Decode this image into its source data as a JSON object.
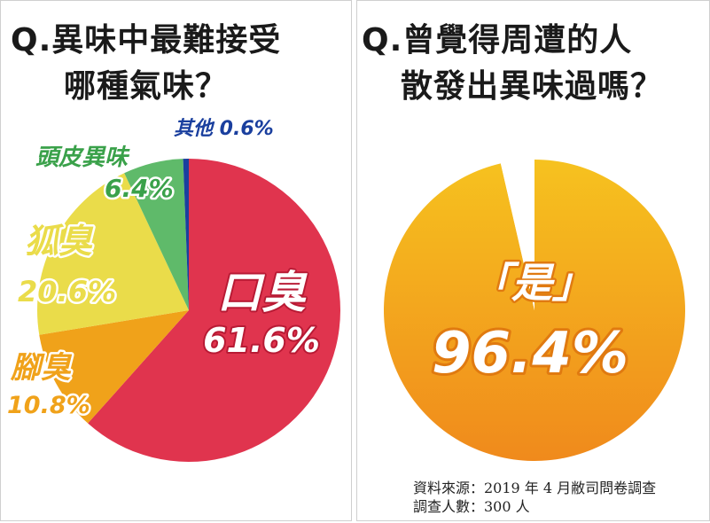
{
  "left_question": {
    "prefix": "Q.",
    "line1": "異味中最難接受",
    "line2": "哪種氣味？"
  },
  "right_question": {
    "prefix": "Q.",
    "line1": "曾覺得周遭的人",
    "line2": "散發出異味過嗎？"
  },
  "source": {
    "line1": "資料來源：2019 年 4 月敝司問卷調查",
    "line2": "調查人數：300 人"
  },
  "colors": {
    "mouth": "#e0344e",
    "foot": "#f0a21a",
    "armpit": "#eadc4a",
    "scalp": "#5fba6a",
    "other": "#1a3f9e",
    "yes_top": "#f6c21f",
    "yes_bottom": "#f08a1c"
  },
  "chart_data": [
    {
      "type": "pie",
      "title": "異味中最難接受哪種氣味？",
      "slices": [
        {
          "label": "口臭",
          "value": 61.6,
          "value_text": "61.6%"
        },
        {
          "label": "腳臭",
          "value": 10.8,
          "value_text": "10.8%"
        },
        {
          "label": "狐臭",
          "value": 20.6,
          "value_text": "20.6%"
        },
        {
          "label": "頭皮異味",
          "value": 6.4,
          "value_text": "6.4%"
        },
        {
          "label": "其他",
          "value": 0.6,
          "value_text": "0.6%"
        }
      ]
    },
    {
      "type": "pie",
      "title": "曾覺得周遭的人散發出異味過嗎？",
      "slices": [
        {
          "label": "「是」",
          "value": 96.4,
          "value_text": "96.4%"
        },
        {
          "label": "",
          "value": 3.6,
          "value_text": ""
        }
      ]
    }
  ]
}
